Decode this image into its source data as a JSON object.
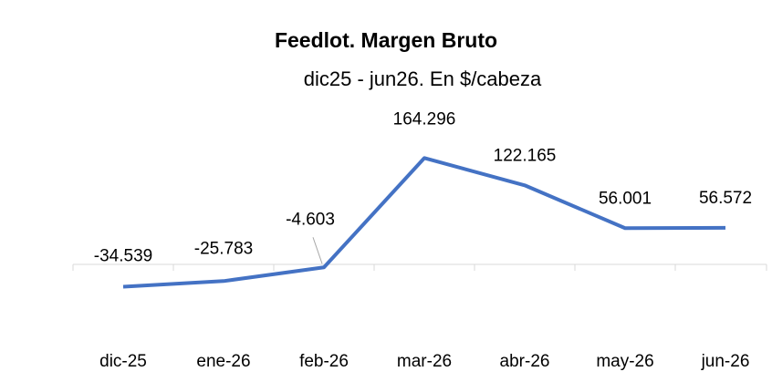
{
  "chart_data": {
    "type": "line",
    "title": "Feedlot. Margen Bruto",
    "subtitle": "dic25 - jun26. En $/cabeza",
    "categories": [
      "dic-25",
      "ene-26",
      "feb-26",
      "mar-26",
      "abr-26",
      "may-26",
      "jun-26"
    ],
    "series": [
      {
        "name": "Margen Bruto",
        "color": "#4472c4",
        "values": [
          -34539,
          -25783,
          -4603,
          164296,
          122165,
          56001,
          56572
        ],
        "value_labels": [
          "-34.539",
          "-25.783",
          "-4.603",
          "164.296",
          "122.165",
          "56.001",
          "56.572"
        ]
      }
    ],
    "ylim": [
      -100000,
      200000
    ]
  }
}
